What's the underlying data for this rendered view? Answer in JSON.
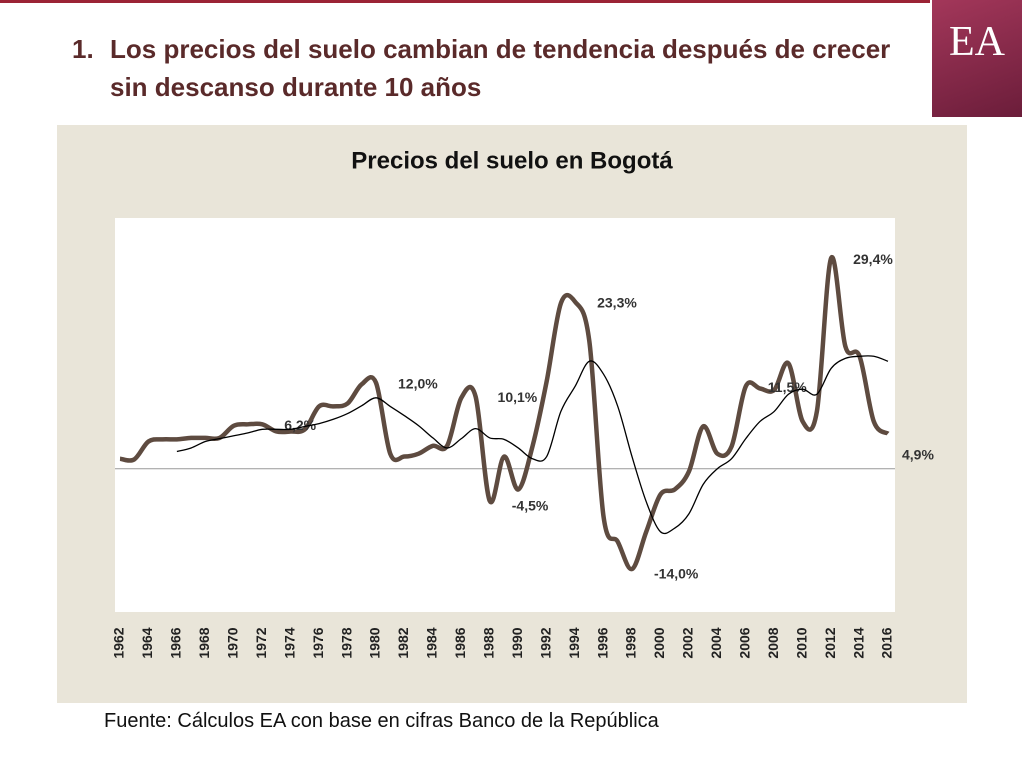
{
  "header": {
    "number": "1.",
    "title": "Los precios del suelo cambian de tendencia después de crecer sin descanso durante 10 años"
  },
  "logo": "EA",
  "chart_data": {
    "type": "line",
    "title": "Precios del suelo en Bogotá",
    "x": [
      1962,
      1963,
      1964,
      1965,
      1966,
      1967,
      1968,
      1969,
      1970,
      1971,
      1972,
      1973,
      1974,
      1975,
      1976,
      1977,
      1978,
      1979,
      1980,
      1981,
      1982,
      1983,
      1984,
      1985,
      1986,
      1987,
      1988,
      1989,
      1990,
      1991,
      1992,
      1993,
      1994,
      1995,
      1996,
      1997,
      1998,
      1999,
      2000,
      2001,
      2002,
      2003,
      2004,
      2005,
      2006,
      2007,
      2008,
      2009,
      2010,
      2011,
      2012,
      2013,
      2014,
      2015,
      2016
    ],
    "xlim": [
      1962,
      2016
    ],
    "xticks": [
      1962,
      1964,
      1966,
      1968,
      1970,
      1972,
      1974,
      1976,
      1978,
      1980,
      1982,
      1984,
      1986,
      1988,
      1990,
      1992,
      1994,
      1996,
      1998,
      2000,
      2002,
      2004,
      2006,
      2008,
      2010,
      2012,
      2014,
      2016
    ],
    "ylim": [
      -20,
      35
    ],
    "series": [
      {
        "color": "#5e4b40",
        "values": [
          1.4,
          1.3,
          3.8,
          4.1,
          4.1,
          4.3,
          4.3,
          4.3,
          6.0,
          6.2,
          6.2,
          5.2,
          5.2,
          5.5,
          8.7,
          8.7,
          9.1,
          11.8,
          12.0,
          2.1,
          1.7,
          2.1,
          3.2,
          3.2,
          9.9,
          10.1,
          -4.5,
          1.7,
          -2.9,
          3.1,
          12.2,
          23.1,
          23.3,
          17.8,
          -6.7,
          -10.2,
          -14.0,
          -8.8,
          -3.6,
          -2.9,
          -0.4,
          5.9,
          2.1,
          3.1,
          11.5,
          11.2,
          11.0,
          14.7,
          6.6,
          8.0,
          29.4,
          17.1,
          15.7,
          6.6,
          4.9
        ],
        "value_labels": [
          null,
          null,
          null,
          null,
          null,
          null,
          null,
          null,
          null,
          null,
          "6,2%",
          null,
          null,
          null,
          null,
          null,
          null,
          null,
          "12,0%",
          null,
          null,
          null,
          null,
          null,
          null,
          "10,1%",
          "-4,5%",
          null,
          null,
          null,
          null,
          null,
          "23,3%",
          null,
          null,
          null,
          "-14,0%",
          null,
          null,
          null,
          null,
          null,
          null,
          null,
          "11,5%",
          null,
          null,
          null,
          null,
          null,
          "29,4%",
          null,
          null,
          null,
          "4,9%"
        ]
      },
      {
        "color": "#000000",
        "values": [
          null,
          null,
          null,
          null,
          2.4,
          2.9,
          3.8,
          4.2,
          4.6,
          5.0,
          5.5,
          5.5,
          5.5,
          5.9,
          6.3,
          6.9,
          7.7,
          8.8,
          9.9,
          8.7,
          7.4,
          6.0,
          4.3,
          2.9,
          4.2,
          5.6,
          4.3,
          4.1,
          2.9,
          1.4,
          1.7,
          8.0,
          11.5,
          15.0,
          13.2,
          8.7,
          1.7,
          -4.6,
          -8.8,
          -8.3,
          -6.3,
          -2.2,
          0,
          1.4,
          4.2,
          6.6,
          8.0,
          10.4,
          11.1,
          10.4,
          14.0,
          15.4,
          15.7,
          15.7,
          15.0
        ]
      }
    ]
  },
  "source": "Fuente: Cálculos EA con base en cifras Banco de la República"
}
